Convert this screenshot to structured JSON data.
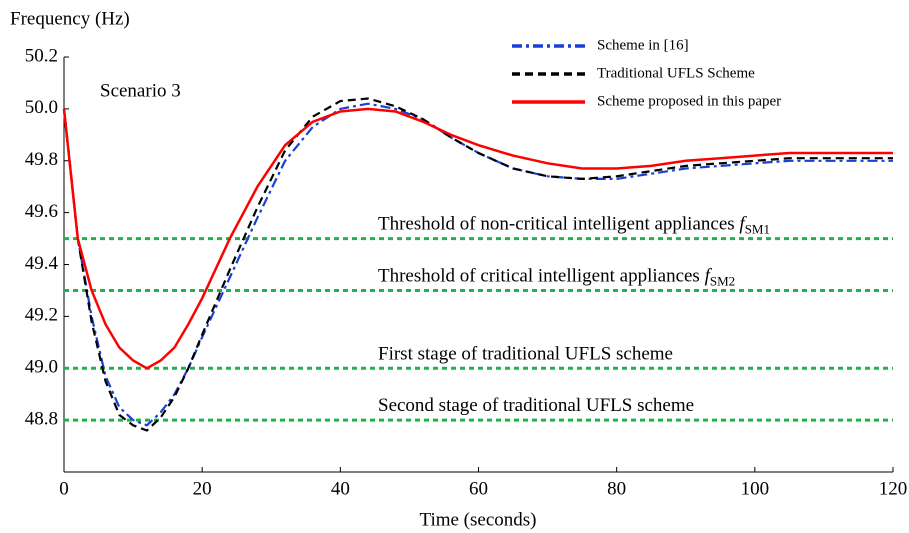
{
  "chart_data": {
    "type": "line",
    "y_axis_label": "Frequency (Hz)",
    "x_axis_label": "Time (seconds)",
    "annotation": "Scenario 3",
    "x": [
      0,
      2,
      4,
      6,
      8,
      10,
      12,
      14,
      16,
      18,
      20,
      24,
      28,
      32,
      36,
      40,
      44,
      48,
      52,
      56,
      60,
      65,
      70,
      75,
      80,
      85,
      90,
      95,
      100,
      105,
      110,
      115,
      120
    ],
    "series": [
      {
        "name": "Scheme in [16]",
        "color": "#1a3fd6",
        "style": "dashdot",
        "values": [
          50.0,
          49.5,
          49.2,
          48.97,
          48.85,
          48.8,
          48.78,
          48.83,
          48.9,
          49.0,
          49.12,
          49.35,
          49.58,
          49.8,
          49.93,
          50.0,
          50.02,
          50.0,
          49.96,
          49.89,
          49.83,
          49.77,
          49.74,
          49.73,
          49.73,
          49.75,
          49.77,
          49.78,
          49.79,
          49.8,
          49.8,
          49.8,
          49.8
        ]
      },
      {
        "name": "Traditional UFLS Scheme",
        "color": "#000000",
        "style": "dashed",
        "values": [
          50.0,
          49.5,
          49.18,
          48.95,
          48.82,
          48.78,
          48.76,
          48.81,
          48.89,
          49.0,
          49.13,
          49.38,
          49.62,
          49.84,
          49.97,
          50.03,
          50.04,
          50.01,
          49.96,
          49.89,
          49.83,
          49.77,
          49.74,
          49.73,
          49.74,
          49.76,
          49.78,
          49.79,
          49.8,
          49.81,
          49.81,
          49.81,
          49.81
        ]
      },
      {
        "name": "Scheme proposed in this paper",
        "color": "#ff0000",
        "style": "solid",
        "values": [
          50.0,
          49.5,
          49.3,
          49.17,
          49.08,
          49.03,
          49.0,
          49.03,
          49.08,
          49.17,
          49.27,
          49.5,
          49.7,
          49.86,
          49.95,
          49.99,
          50.0,
          49.99,
          49.95,
          49.9,
          49.86,
          49.82,
          49.79,
          49.77,
          49.77,
          49.78,
          49.8,
          49.81,
          49.82,
          49.83,
          49.83,
          49.83,
          49.83
        ]
      }
    ],
    "thresholds": [
      {
        "value": 49.5,
        "label": "Threshold of non-critical intelligent appliances ",
        "symbol": "f",
        "subscript": "SM1"
      },
      {
        "value": 49.3,
        "label": "Threshold of critical intelligent appliances ",
        "symbol": "f",
        "subscript": "SM2"
      },
      {
        "value": 49,
        "label": "First stage of traditional UFLS scheme"
      },
      {
        "value": 48.8,
        "label": "Second stage of traditional UFLS scheme"
      }
    ],
    "threshold_color": "#1fb34a",
    "xlim": [
      0,
      120
    ],
    "xticks": [
      0,
      20,
      40,
      60,
      80,
      100,
      120
    ],
    "ylim": [
      48.6,
      50.2
    ],
    "yticks": [
      48.8,
      {
        "value": 49,
        "label": "49.0"
      },
      49.2,
      49.4,
      49.6,
      49.8,
      {
        "value": 50,
        "label": "50.0"
      },
      50.2
    ],
    "legend": "upper right"
  }
}
